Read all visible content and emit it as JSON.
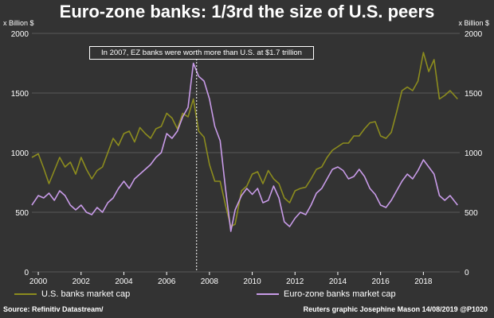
{
  "chart_data": {
    "type": "line",
    "title": "Euro-zone banks: 1/3rd the size of U.S. peers",
    "ylabel_left": "x Billion $",
    "ylabel_right": "x Billion $",
    "ylim_left": [
      0,
      2000
    ],
    "ylim_right": [
      0,
      2000
    ],
    "xlim": [
      1999.7,
      2019.7
    ],
    "left_ticks": [
      "0",
      "500",
      "1000",
      "1500",
      "2000"
    ],
    "right_ticks": [
      "0",
      "500",
      "1000",
      "1500",
      "2000"
    ],
    "x_ticks": [
      "2000",
      "2002",
      "2004",
      "2006",
      "2008",
      "2010",
      "2012",
      "2014",
      "2016",
      "2018"
    ],
    "annotation": {
      "text": "In 2007, EZ banks were worth more than U.S. at $1.7 trillion",
      "x": 2007.4
    },
    "series": [
      {
        "name": "U.S. banks market cap",
        "color": "#8c8c1e",
        "x": [
          1999.7,
          2000.0,
          2000.25,
          2000.5,
          2000.75,
          2001.0,
          2001.25,
          2001.5,
          2001.75,
          2002.0,
          2002.25,
          2002.5,
          2002.75,
          2003.0,
          2003.25,
          2003.5,
          2003.75,
          2004.0,
          2004.25,
          2004.5,
          2004.75,
          2005.0,
          2005.25,
          2005.5,
          2005.75,
          2006.0,
          2006.25,
          2006.5,
          2006.75,
          2007.0,
          2007.25,
          2007.5,
          2007.75,
          2008.0,
          2008.25,
          2008.5,
          2008.75,
          2009.0,
          2009.2,
          2009.5,
          2009.75,
          2010.0,
          2010.25,
          2010.5,
          2010.75,
          2011.0,
          2011.25,
          2011.5,
          2011.75,
          2012.0,
          2012.25,
          2012.5,
          2012.75,
          2013.0,
          2013.25,
          2013.5,
          2013.75,
          2014.0,
          2014.25,
          2014.5,
          2014.75,
          2015.0,
          2015.25,
          2015.5,
          2015.75,
          2016.0,
          2016.25,
          2016.5,
          2016.75,
          2017.0,
          2017.25,
          2017.5,
          2017.75,
          2018.0,
          2018.25,
          2018.5,
          2018.75,
          2019.0,
          2019.25,
          2019.6
        ],
        "values": [
          960,
          990,
          870,
          740,
          850,
          960,
          880,
          920,
          820,
          960,
          860,
          780,
          850,
          880,
          1000,
          1120,
          1060,
          1160,
          1180,
          1090,
          1210,
          1160,
          1120,
          1200,
          1220,
          1330,
          1290,
          1200,
          1330,
          1300,
          1450,
          1180,
          1130,
          900,
          760,
          760,
          560,
          380,
          400,
          680,
          720,
          820,
          840,
          740,
          850,
          780,
          740,
          620,
          580,
          680,
          700,
          710,
          780,
          860,
          880,
          960,
          1020,
          1050,
          1080,
          1080,
          1140,
          1140,
          1200,
          1250,
          1260,
          1140,
          1120,
          1170,
          1340,
          1520,
          1550,
          1520,
          1600,
          1840,
          1680,
          1780,
          1450,
          1480,
          1520,
          1450
        ]
      },
      {
        "name": "Euro-zone banks market cap",
        "color": "#c89be8",
        "x": [
          1999.7,
          2000.0,
          2000.25,
          2000.5,
          2000.75,
          2001.0,
          2001.25,
          2001.5,
          2001.75,
          2002.0,
          2002.25,
          2002.5,
          2002.75,
          2003.0,
          2003.25,
          2003.5,
          2003.75,
          2004.0,
          2004.25,
          2004.5,
          2004.75,
          2005.0,
          2005.25,
          2005.5,
          2005.75,
          2006.0,
          2006.25,
          2006.5,
          2006.75,
          2007.0,
          2007.25,
          2007.5,
          2007.75,
          2008.0,
          2008.25,
          2008.5,
          2008.75,
          2009.0,
          2009.2,
          2009.5,
          2009.75,
          2010.0,
          2010.25,
          2010.5,
          2010.75,
          2011.0,
          2011.25,
          2011.5,
          2011.75,
          2012.0,
          2012.25,
          2012.5,
          2012.75,
          2013.0,
          2013.25,
          2013.5,
          2013.75,
          2014.0,
          2014.25,
          2014.5,
          2014.75,
          2015.0,
          2015.25,
          2015.5,
          2015.75,
          2016.0,
          2016.25,
          2016.5,
          2016.75,
          2017.0,
          2017.25,
          2017.5,
          2017.75,
          2018.0,
          2018.25,
          2018.5,
          2018.75,
          2019.0,
          2019.25,
          2019.6
        ],
        "values": [
          560,
          640,
          620,
          660,
          600,
          680,
          640,
          560,
          520,
          560,
          500,
          480,
          540,
          500,
          580,
          620,
          700,
          760,
          700,
          780,
          820,
          860,
          900,
          960,
          1000,
          1160,
          1120,
          1180,
          1300,
          1380,
          1750,
          1640,
          1600,
          1450,
          1220,
          1100,
          700,
          340,
          520,
          640,
          700,
          650,
          700,
          580,
          600,
          720,
          620,
          420,
          380,
          450,
          500,
          480,
          560,
          660,
          700,
          780,
          860,
          880,
          850,
          780,
          800,
          860,
          800,
          700,
          650,
          560,
          540,
          600,
          680,
          760,
          820,
          780,
          850,
          940,
          880,
          820,
          640,
          600,
          640,
          560
        ]
      }
    ]
  },
  "footer": {
    "source": "Source: Refinitiv Datastream/",
    "credit": "Reuters graphic Josephine Mason 14/08/2019 @P1020"
  }
}
